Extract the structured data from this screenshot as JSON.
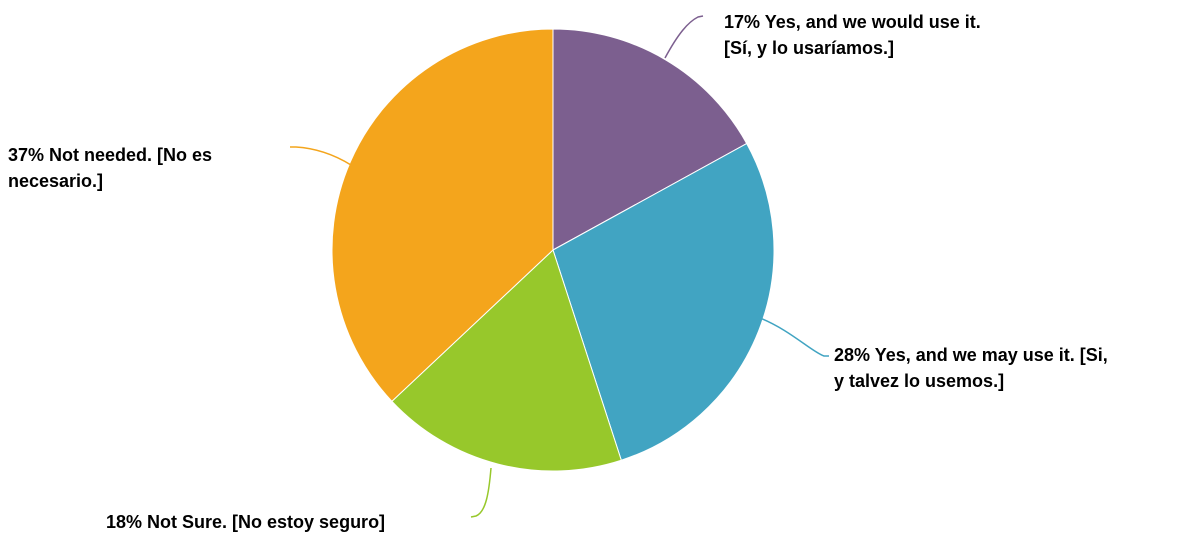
{
  "chart_data": {
    "type": "pie",
    "title": "",
    "slices": [
      {
        "label": "Yes, and we would use it. [Sí, y lo usaríamos.]",
        "value": 17,
        "color": "#7c5f8f",
        "label_lines": [
          "17% Yes, and we would use it.",
          "[Sí, y lo usaríamos.]"
        ]
      },
      {
        "label": "Yes, and we may use it. [Si, y talvez lo usemos.]",
        "value": 28,
        "color": "#41a4c2",
        "label_lines": [
          "28% Yes, and we may use it. [Si,",
          "y talvez lo usemos.]"
        ]
      },
      {
        "label": "Not Sure. [No estoy seguro]",
        "value": 18,
        "color": "#97c82b",
        "label_lines": [
          "18% Not Sure. [No estoy seguro]"
        ]
      },
      {
        "label": "Not needed. [No es necesario.]",
        "value": 37,
        "color": "#f4a51c",
        "label_lines": [
          "37% Not needed. [No es",
          "necesario.]"
        ]
      }
    ],
    "start_angle_deg": 0,
    "direction": "clockwise",
    "legend": "none"
  }
}
